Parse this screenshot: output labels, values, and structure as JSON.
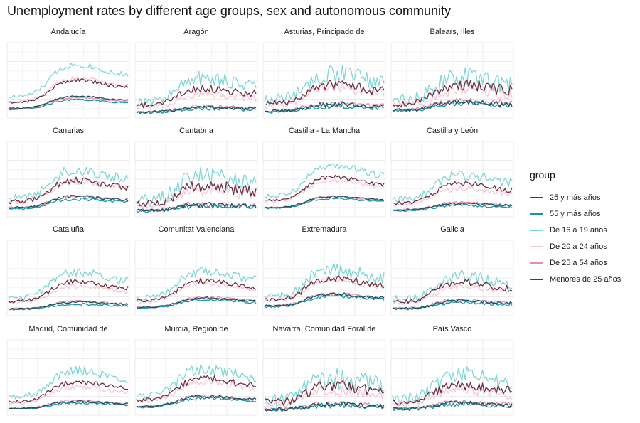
{
  "chart_data": {
    "type": "line",
    "title": "Unemployment rates by different age groups, sex and autonomous community",
    "xlabel": "",
    "ylabel": "",
    "facet_layout": {
      "columns": 4,
      "rows": 4
    },
    "legend": {
      "title": "group",
      "placement": "right"
    },
    "grid": true,
    "series": [
      {
        "name": "25 y más años",
        "color": "#1f4e5f"
      },
      {
        "name": "55 y más años",
        "color": "#1796a3"
      },
      {
        "name": "De 16 a 19 años",
        "color": "#7fd6d8"
      },
      {
        "name": "De 20 a 24 años",
        "color": "#f6c8d6"
      },
      {
        "name": "De 25 a 54 años",
        "color": "#e58ea8"
      },
      {
        "name": "Menores de 25 años",
        "color": "#6b2f3f"
      }
    ],
    "panels": [
      {
        "name": "Andalucía",
        "levels": [
          0.28,
          0.23,
          0.75,
          0.55,
          0.26,
          0.52
        ],
        "noise": 0.04
      },
      {
        "name": "Aragón",
        "levels": [
          0.12,
          0.1,
          0.55,
          0.32,
          0.13,
          0.4
        ],
        "noise": 0.1
      },
      {
        "name": "Asturias, Principado de",
        "levels": [
          0.16,
          0.13,
          0.62,
          0.42,
          0.18,
          0.45
        ],
        "noise": 0.12
      },
      {
        "name": "Balears, Illes",
        "levels": [
          0.2,
          0.18,
          0.58,
          0.38,
          0.22,
          0.46
        ],
        "noise": 0.14
      },
      {
        "name": "Canarias",
        "levels": [
          0.26,
          0.22,
          0.65,
          0.48,
          0.26,
          0.5
        ],
        "noise": 0.08
      },
      {
        "name": "Cantabria",
        "levels": [
          0.14,
          0.12,
          0.55,
          0.35,
          0.15,
          0.42
        ],
        "noise": 0.14
      },
      {
        "name": "Castilla - La Mancha",
        "levels": [
          0.26,
          0.23,
          0.72,
          0.5,
          0.26,
          0.55
        ],
        "noise": 0.05
      },
      {
        "name": "Castilla y León",
        "levels": [
          0.16,
          0.13,
          0.58,
          0.38,
          0.17,
          0.45
        ],
        "noise": 0.07
      },
      {
        "name": "Cataluña",
        "levels": [
          0.16,
          0.13,
          0.6,
          0.4,
          0.17,
          0.46
        ],
        "noise": 0.06
      },
      {
        "name": "Comunitat Valenciana",
        "levels": [
          0.22,
          0.19,
          0.62,
          0.44,
          0.23,
          0.48
        ],
        "noise": 0.06
      },
      {
        "name": "Extremadura",
        "levels": [
          0.28,
          0.25,
          0.65,
          0.5,
          0.28,
          0.52
        ],
        "noise": 0.09
      },
      {
        "name": "Galicia",
        "levels": [
          0.18,
          0.15,
          0.55,
          0.4,
          0.19,
          0.45
        ],
        "noise": 0.08
      },
      {
        "name": "Madrid, Comunidad de",
        "levels": [
          0.16,
          0.14,
          0.62,
          0.38,
          0.17,
          0.45
        ],
        "noise": 0.06
      },
      {
        "name": "Murcia, Región de",
        "levels": [
          0.24,
          0.21,
          0.65,
          0.45,
          0.24,
          0.5
        ],
        "noise": 0.08
      },
      {
        "name": "Navarra, Comunidad Foral de",
        "levels": [
          0.12,
          0.1,
          0.5,
          0.32,
          0.13,
          0.4
        ],
        "noise": 0.14
      },
      {
        "name": "País Vasco",
        "levels": [
          0.14,
          0.12,
          0.55,
          0.33,
          0.15,
          0.4
        ],
        "noise": 0.12
      }
    ]
  }
}
